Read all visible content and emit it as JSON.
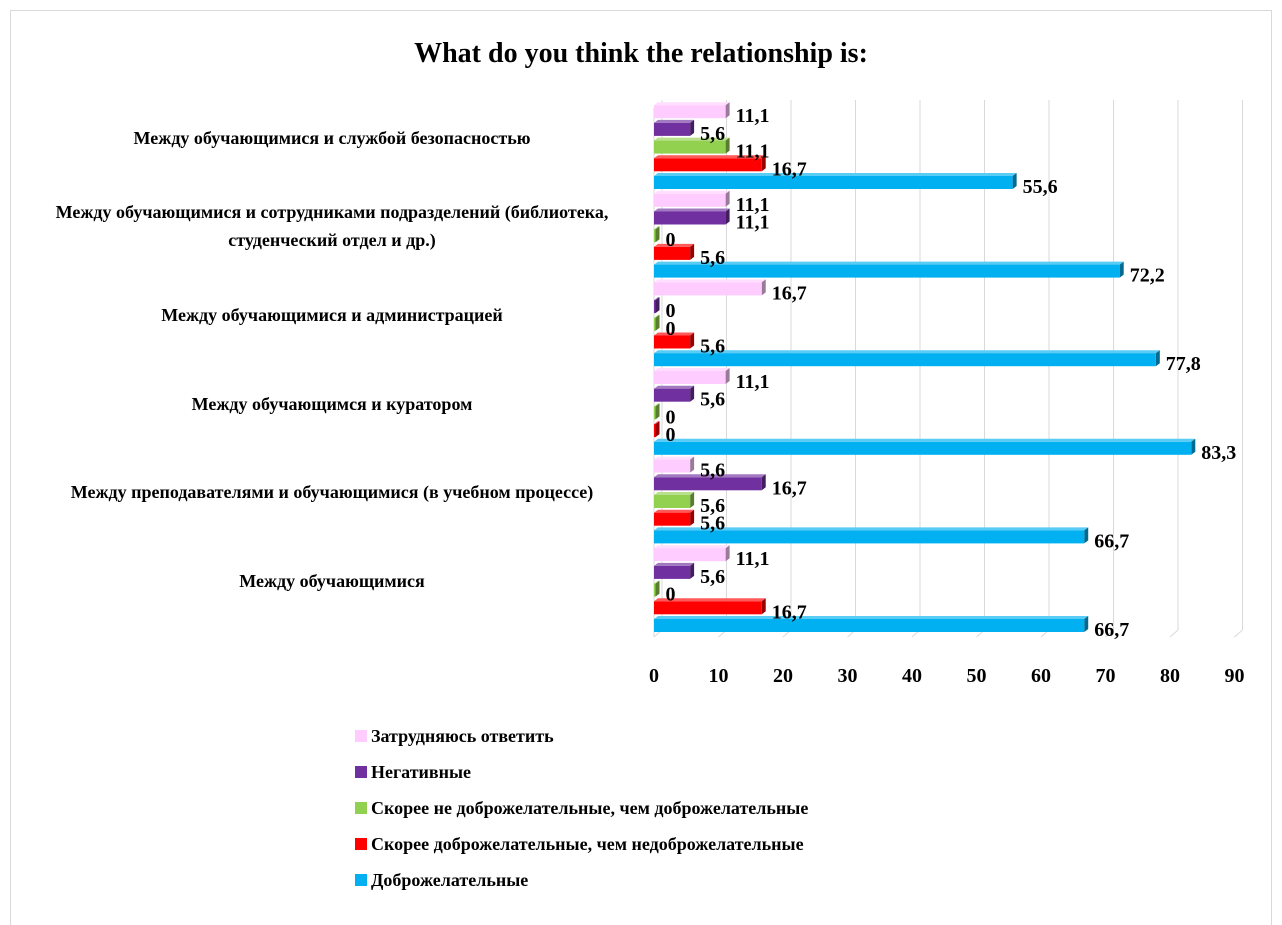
{
  "chart_data": {
    "type": "bar",
    "orientation": "horizontal",
    "title": "What do you think the relationship is:",
    "categories": [
      "Между обучающимися",
      "Между преподавателями и обучающимися (в учебном процессе)",
      "Между обучающимся и куратором",
      "Между обучающимися и администрацией",
      "Между обучающимися и сотрудниками подразделений (библиотека, студенческий отдел и др.)",
      "Между обучающимися и службой безопасностью"
    ],
    "series": [
      {
        "name": "Доброжелательные",
        "color": "#00b0f0",
        "values": [
          66.7,
          66.7,
          83.3,
          77.8,
          72.2,
          55.6
        ],
        "labels": [
          "66,7",
          "66,7",
          "83,3",
          "77,8",
          "72,2",
          "55,6"
        ]
      },
      {
        "name": "Скорее доброжелательные, чем недоброжелательные",
        "color": "#ff0000",
        "values": [
          16.7,
          5.6,
          0,
          5.6,
          5.6,
          16.7
        ],
        "labels": [
          "16,7",
          "5,6",
          "0",
          "5,6",
          "5,6",
          "16,7"
        ]
      },
      {
        "name": "Скорее не доброжелательные, чем доброжелательные",
        "color": "#92d050",
        "values": [
          0,
          5.6,
          0,
          0,
          0,
          11.1
        ],
        "labels": [
          "0",
          "5,6",
          "0",
          "0",
          "0",
          "11,1"
        ]
      },
      {
        "name": "Негативные",
        "color": "#7030a0",
        "values": [
          5.6,
          16.7,
          5.6,
          0,
          11.1,
          5.6
        ],
        "labels": [
          "5,6",
          "16,7",
          "5,6",
          "0",
          "11,1",
          "5,6"
        ]
      },
      {
        "name": "Затрудняюсь ответить",
        "color": "#ffccff",
        "values": [
          11.1,
          5.6,
          11.1,
          16.7,
          11.1,
          11.1
        ],
        "labels": [
          "11,1",
          "5,6",
          "11,1",
          "16,7",
          "11,1",
          "11,1"
        ]
      }
    ],
    "xlim": [
      0,
      90
    ],
    "xticks": [
      0,
      10,
      20,
      30,
      40,
      50,
      60,
      70,
      80,
      90
    ],
    "grid": true,
    "legend_position": "bottom",
    "legend_order": [
      4,
      3,
      2,
      1,
      0
    ]
  }
}
